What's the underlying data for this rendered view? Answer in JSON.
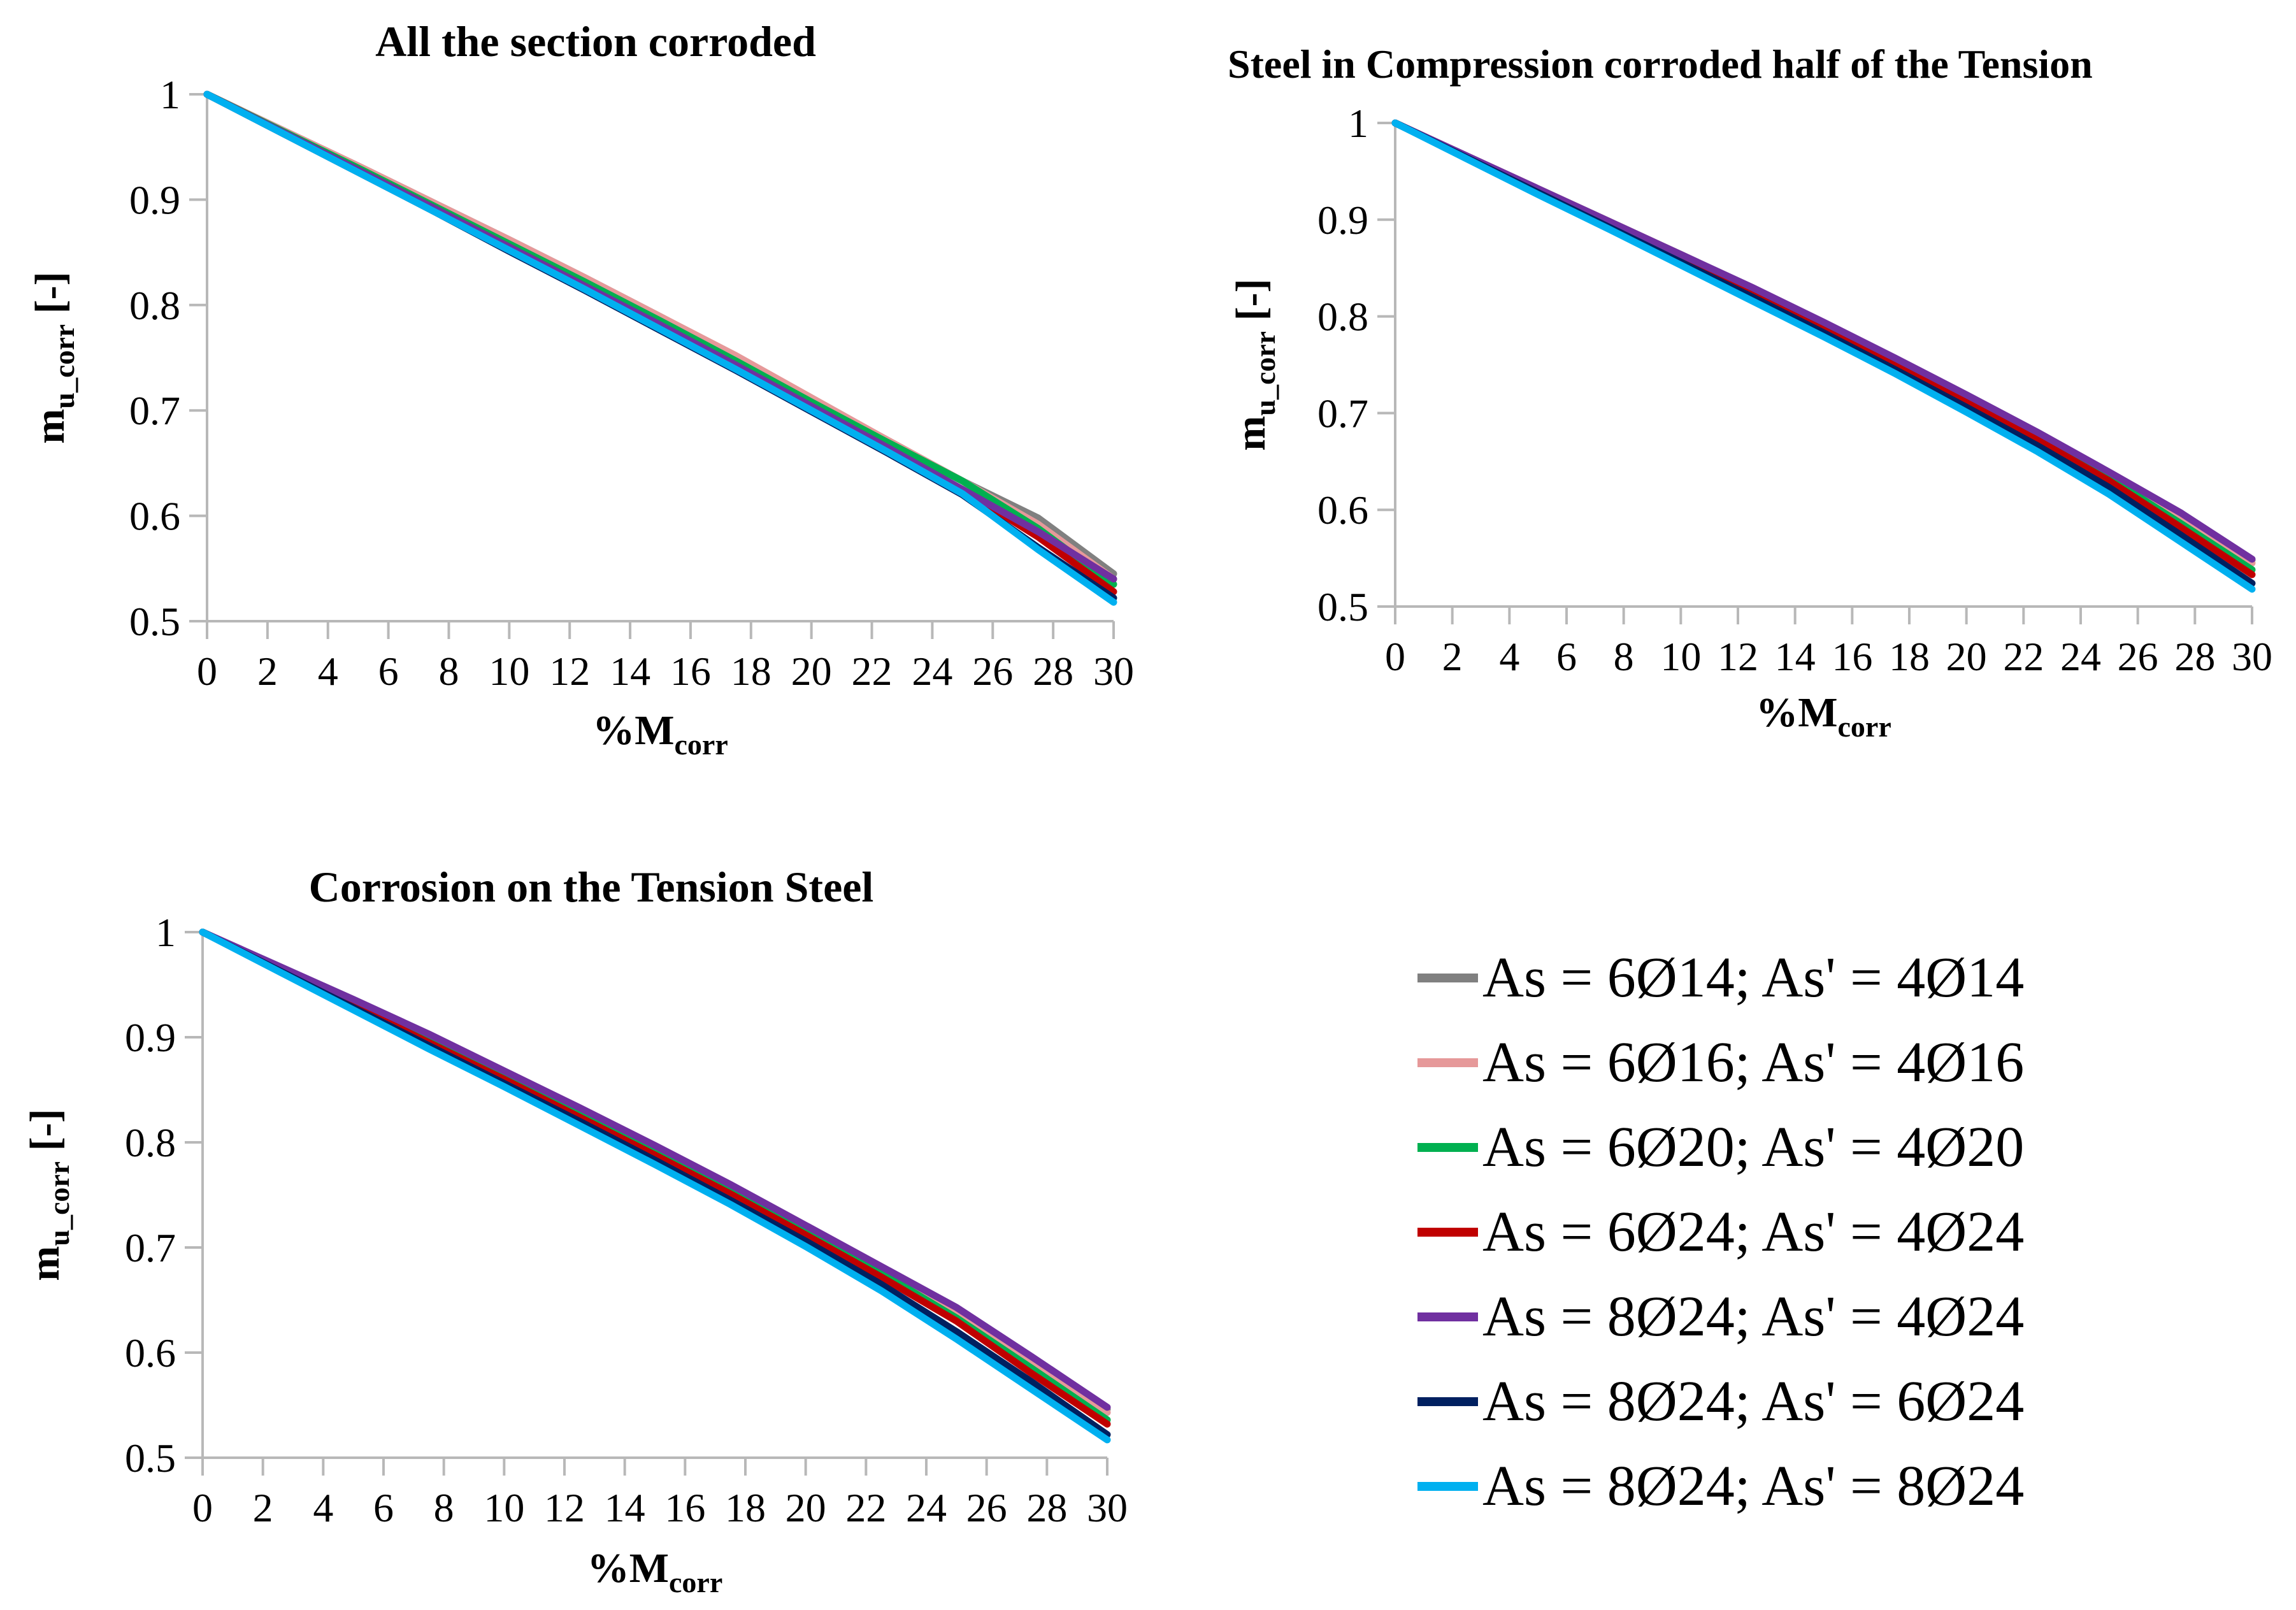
{
  "chart_data": [
    {
      "type": "line",
      "title": "All the section corroded",
      "xlabel": {
        "main": "%M",
        "sub": "corr"
      },
      "ylabel": {
        "main": "m",
        "sub": "u_corr",
        "suffix": " [-]"
      },
      "xlim": [
        0,
        30
      ],
      "ylim": [
        0.5,
        1
      ],
      "xticks": [
        "0",
        "2",
        "4",
        "6",
        "8",
        "10",
        "12",
        "14",
        "16",
        "18",
        "20",
        "22",
        "24",
        "26",
        "28",
        "30"
      ],
      "yticks": [
        "0.5",
        "0.6",
        "0.7",
        "0.8",
        "0.9",
        "1"
      ],
      "x": [
        0,
        2.5,
        5,
        7.5,
        10,
        12.5,
        15,
        17.5,
        20,
        22.5,
        25,
        27.5,
        30
      ],
      "series": [
        {
          "name": "As = 6Ø14; As' = 4Ø14",
          "color": "#808080",
          "values": [
            1,
            0.966,
            0.932,
            0.897,
            0.862,
            0.826,
            0.789,
            0.751,
            0.711,
            0.672,
            0.633,
            0.598,
            0.545
          ]
        },
        {
          "name": "As = 6Ø16; As' = 4Ø16",
          "color": "#e6999a",
          "values": [
            1,
            0.966,
            0.932,
            0.897,
            0.862,
            0.826,
            0.789,
            0.752,
            0.712,
            0.672,
            0.633,
            0.592,
            0.54
          ]
        },
        {
          "name": "As = 6Ø20; As' = 4Ø20",
          "color": "#00b050",
          "values": [
            1,
            0.965,
            0.93,
            0.894,
            0.858,
            0.822,
            0.785,
            0.747,
            0.708,
            0.67,
            0.633,
            0.588,
            0.535
          ]
        },
        {
          "name": "As = 6Ø24; As' = 4Ø24",
          "color": "#c00000",
          "values": [
            1,
            0.964,
            0.928,
            0.892,
            0.855,
            0.818,
            0.78,
            0.742,
            0.703,
            0.664,
            0.625,
            0.58,
            0.528
          ]
        },
        {
          "name": "As = 8Ø24; As' = 4Ø24",
          "color": "#7030a0",
          "values": [
            1,
            0.964,
            0.928,
            0.892,
            0.855,
            0.818,
            0.781,
            0.743,
            0.704,
            0.665,
            0.625,
            0.585,
            0.54
          ]
        },
        {
          "name": "As = 8Ø24; As' = 6Ø24",
          "color": "#002060",
          "values": [
            1,
            0.963,
            0.926,
            0.889,
            0.851,
            0.814,
            0.776,
            0.738,
            0.699,
            0.66,
            0.62,
            0.57,
            0.522
          ]
        },
        {
          "name": "As = 8Ø24; As' = 8Ø24",
          "color": "#00b0f0",
          "values": [
            1,
            0.963,
            0.926,
            0.889,
            0.852,
            0.815,
            0.777,
            0.739,
            0.7,
            0.661,
            0.621,
            0.568,
            0.518
          ]
        }
      ]
    },
    {
      "type": "line",
      "title": "Steel in Compression corroded half of the Tension",
      "xlabel": {
        "main": "%M",
        "sub": "corr"
      },
      "ylabel": {
        "main": "m",
        "sub": "u_corr",
        "suffix": " [-]"
      },
      "xlim": [
        0,
        30
      ],
      "ylim": [
        0.5,
        1
      ],
      "xticks": [
        "0",
        "2",
        "4",
        "6",
        "8",
        "10",
        "12",
        "14",
        "16",
        "18",
        "20",
        "22",
        "24",
        "26",
        "28",
        "30"
      ],
      "yticks": [
        "0.5",
        "0.6",
        "0.7",
        "0.8",
        "0.9",
        "1"
      ],
      "x": [
        0,
        2.5,
        5,
        7.5,
        10,
        12.5,
        15,
        17.5,
        20,
        22.5,
        25,
        27.5,
        30
      ],
      "series": [
        {
          "name": "As = 6Ø14; As' = 4Ø14",
          "color": "#808080",
          "values": [
            1,
            0.966,
            0.932,
            0.898,
            0.864,
            0.829,
            0.793,
            0.756,
            0.718,
            0.679,
            0.638,
            0.595,
            0.548
          ]
        },
        {
          "name": "As = 6Ø16; As' = 4Ø16",
          "color": "#e6999a",
          "values": [
            1,
            0.966,
            0.932,
            0.898,
            0.864,
            0.829,
            0.793,
            0.756,
            0.718,
            0.679,
            0.637,
            0.593,
            0.545
          ]
        },
        {
          "name": "As = 6Ø20; As' = 4Ø20",
          "color": "#00b050",
          "values": [
            1,
            0.965,
            0.93,
            0.895,
            0.86,
            0.825,
            0.789,
            0.752,
            0.714,
            0.675,
            0.633,
            0.586,
            0.538
          ]
        },
        {
          "name": "As = 6Ø24; As' = 4Ø24",
          "color": "#c00000",
          "values": [
            1,
            0.965,
            0.929,
            0.894,
            0.858,
            0.822,
            0.786,
            0.749,
            0.711,
            0.672,
            0.63,
            0.582,
            0.533
          ]
        },
        {
          "name": "As = 8Ø24; As' = 4Ø24",
          "color": "#7030a0",
          "values": [
            1,
            0.966,
            0.932,
            0.898,
            0.864,
            0.83,
            0.794,
            0.757,
            0.719,
            0.68,
            0.639,
            0.597,
            0.549
          ]
        },
        {
          "name": "As = 8Ø24; As' = 6Ø24",
          "color": "#002060",
          "values": [
            1,
            0.964,
            0.928,
            0.892,
            0.856,
            0.82,
            0.783,
            0.745,
            0.706,
            0.666,
            0.623,
            0.574,
            0.524
          ]
        },
        {
          "name": "As = 8Ø24; As' = 8Ø24",
          "color": "#00b0f0",
          "values": [
            1,
            0.963,
            0.926,
            0.89,
            0.853,
            0.816,
            0.779,
            0.741,
            0.701,
            0.66,
            0.616,
            0.567,
            0.518
          ]
        }
      ]
    },
    {
      "type": "line",
      "title": "Corrosion on the Tension Steel",
      "xlabel": {
        "main": "%M",
        "sub": "corr"
      },
      "ylabel": {
        "main": "m",
        "sub": "u_corr",
        "suffix": " [-]"
      },
      "xlim": [
        0,
        30
      ],
      "ylim": [
        0.5,
        1
      ],
      "xticks": [
        "0",
        "2",
        "4",
        "6",
        "8",
        "10",
        "12",
        "14",
        "16",
        "18",
        "20",
        "22",
        "24",
        "26",
        "28",
        "30"
      ],
      "yticks": [
        "0.5",
        "0.6",
        "0.7",
        "0.8",
        "0.9",
        "1"
      ],
      "x": [
        0,
        2.5,
        5,
        7.5,
        10,
        12.5,
        15,
        17.5,
        20,
        22.5,
        25,
        27.5,
        30
      ],
      "series": [
        {
          "name": "As = 6Ø14; As' = 4Ø14",
          "color": "#808080",
          "values": [
            1,
            0.967,
            0.934,
            0.9,
            0.866,
            0.831,
            0.795,
            0.758,
            0.72,
            0.681,
            0.64,
            0.595,
            0.546
          ]
        },
        {
          "name": "As = 6Ø16; As' = 4Ø16",
          "color": "#e6999a",
          "values": [
            1,
            0.967,
            0.934,
            0.9,
            0.866,
            0.831,
            0.795,
            0.758,
            0.72,
            0.68,
            0.638,
            0.59,
            0.543
          ]
        },
        {
          "name": "As = 6Ø20; As' = 4Ø20",
          "color": "#00b050",
          "values": [
            1,
            0.966,
            0.932,
            0.897,
            0.862,
            0.827,
            0.791,
            0.754,
            0.716,
            0.676,
            0.633,
            0.585,
            0.536
          ]
        },
        {
          "name": "As = 6Ø24; As' = 4Ø24",
          "color": "#c00000",
          "values": [
            1,
            0.965,
            0.93,
            0.895,
            0.86,
            0.824,
            0.788,
            0.751,
            0.712,
            0.672,
            0.63,
            0.58,
            0.532
          ]
        },
        {
          "name": "As = 8Ø24; As' = 4Ø24",
          "color": "#7030a0",
          "values": [
            1,
            0.968,
            0.936,
            0.903,
            0.868,
            0.833,
            0.797,
            0.76,
            0.721,
            0.682,
            0.643,
            0.596,
            0.548
          ]
        },
        {
          "name": "As = 8Ø24; As' = 6Ø24",
          "color": "#002060",
          "values": [
            1,
            0.964,
            0.928,
            0.892,
            0.856,
            0.82,
            0.783,
            0.745,
            0.706,
            0.665,
            0.62,
            0.572,
            0.522
          ]
        },
        {
          "name": "As = 8Ø24; As' = 8Ø24",
          "color": "#00b0f0",
          "values": [
            1,
            0.963,
            0.926,
            0.889,
            0.853,
            0.816,
            0.779,
            0.741,
            0.701,
            0.659,
            0.613,
            0.565,
            0.517
          ]
        }
      ]
    }
  ],
  "legend": {
    "items": [
      {
        "label": "As = 6Ø14; As' = 4Ø14",
        "color": "#808080"
      },
      {
        "label": "As = 6Ø16; As' = 4Ø16",
        "color": "#e6999a"
      },
      {
        "label": "As = 6Ø20; As' = 4Ø20",
        "color": "#00b050"
      },
      {
        "label": "As = 6Ø24; As' = 4Ø24",
        "color": "#c00000"
      },
      {
        "label": "As = 8Ø24; As' = 4Ø24",
        "color": "#7030a0"
      },
      {
        "label": "As = 8Ø24; As' = 6Ø24",
        "color": "#002060"
      },
      {
        "label": "As = 8Ø24; As' = 8Ø24",
        "color": "#00b0f0"
      }
    ]
  }
}
